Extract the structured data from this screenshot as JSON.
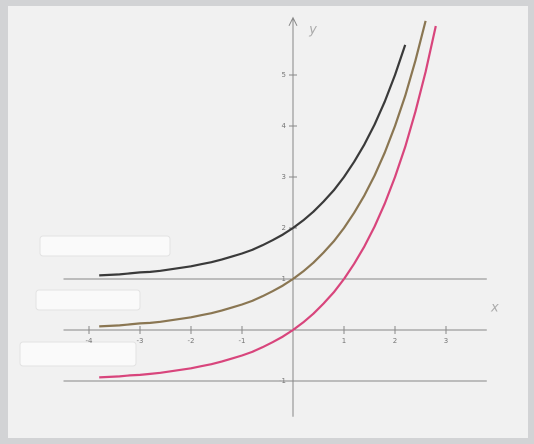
{
  "chart_data": {
    "type": "line",
    "x_label": "x",
    "y_label": "y",
    "x": [
      -3.8,
      -3.6,
      -3.4,
      -3.2,
      -3.0,
      -2.8,
      -2.6,
      -2.4,
      -2.2,
      -2.0,
      -1.8,
      -1.6,
      -1.4,
      -1.2,
      -1.0,
      -0.8,
      -0.6,
      -0.4,
      -0.2,
      0,
      0.2,
      0.4,
      0.6,
      0.8,
      1.0,
      1.2,
      1.4,
      1.6,
      1.8,
      2.0,
      2.2,
      2.4,
      2.6,
      2.8
    ],
    "series": [
      {
        "color": "#3a3a3a",
        "values": [
          1.07,
          1.08,
          1.09,
          1.11,
          1.13,
          1.14,
          1.16,
          1.19,
          1.22,
          1.25,
          1.29,
          1.33,
          1.38,
          1.44,
          1.5,
          1.57,
          1.66,
          1.76,
          1.87,
          2,
          2.15,
          2.32,
          2.52,
          2.74,
          3,
          3.3,
          3.64,
          4.03,
          4.48,
          5,
          5.59,
          null,
          null,
          null
        ]
      },
      {
        "color": "#8a7652",
        "values": [
          0.07,
          0.08,
          0.09,
          0.11,
          0.13,
          0.14,
          0.16,
          0.19,
          0.22,
          0.25,
          0.29,
          0.33,
          0.38,
          0.44,
          0.5,
          0.57,
          0.66,
          0.76,
          0.87,
          1,
          1.15,
          1.32,
          1.52,
          1.74,
          2,
          2.3,
          2.64,
          3.03,
          3.48,
          4,
          4.59,
          5.28,
          6.06,
          null
        ]
      },
      {
        "color": "#d8457c",
        "values": [
          -0.93,
          -0.92,
          -0.91,
          -0.89,
          -0.88,
          -0.86,
          -0.84,
          -0.81,
          -0.78,
          -0.75,
          -0.71,
          -0.67,
          -0.62,
          -0.56,
          -0.5,
          -0.43,
          -0.34,
          -0.24,
          -0.13,
          0,
          0.15,
          0.32,
          0.52,
          0.74,
          1,
          1.3,
          1.64,
          2.03,
          2.48,
          3,
          3.59,
          4.28,
          5.06,
          5.96
        ]
      }
    ],
    "asymptotes": [
      1,
      -1
    ],
    "xlim": [
      -4.5,
      3.8
    ],
    "ylim": [
      -1.7,
      6.2
    ],
    "xticks": [
      -4,
      -3,
      -2,
      -1,
      1,
      2,
      3
    ],
    "yticks": [
      -1,
      1,
      2,
      3,
      4,
      5
    ]
  }
}
